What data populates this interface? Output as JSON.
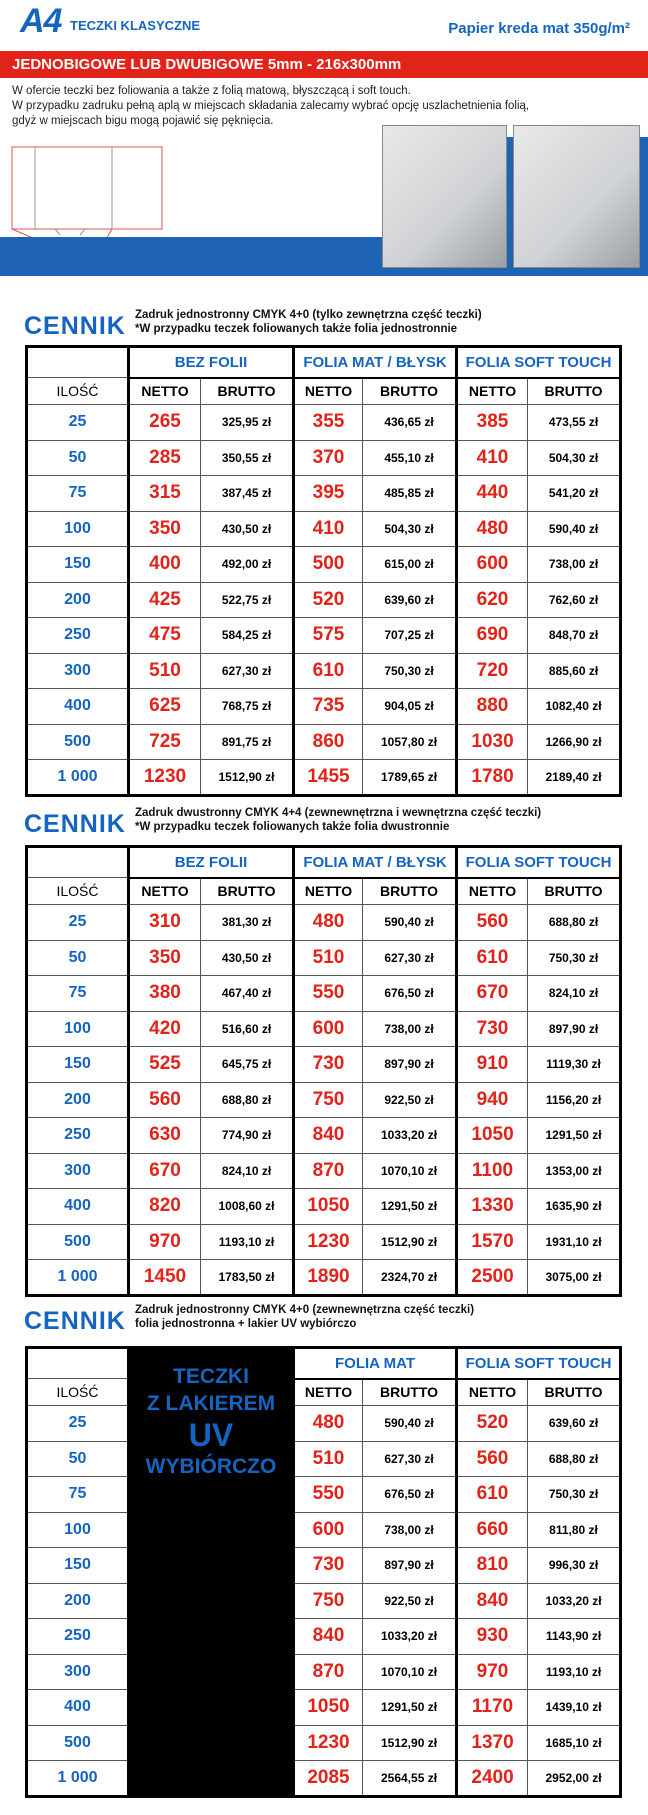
{
  "header": {
    "logo": "A4",
    "title": "TECZKI KLASYCZNE",
    "paper": "Papier kreda mat 350g/m²"
  },
  "banner": "JEDNOBIGOWE LUB DWUBIGOWE 5mm - 216x300mm",
  "intro": [
    "W ofercie teczki bez foliowania a także z folią matową, błyszczącą i soft touch.",
    "W przypadku zadruku pełną aplą w miejscach składania zalecamy wybrać opcję uszlachetnienia folią,",
    "gdyż w miejscach bigu mogą pojawić się pęknięcia."
  ],
  "tables": [
    {
      "label": "CENNIK",
      "desc": [
        "Zadruk jednostronny CMYK 4+0 (tylko zewnętrzna część teczki)",
        "*W przypadku teczek foliowanych także folia jednostronnie"
      ],
      "groups": [
        "BEZ FOLII",
        "FOLIA MAT / BŁYSK",
        "FOLIA SOFT TOUCH"
      ],
      "qty_header": "ILOŚĆ",
      "subheaders": [
        "NETTO",
        "BRUTTO",
        "NETTO",
        "BRUTTO",
        "NETTO",
        "BRUTTO"
      ],
      "rows": [
        [
          "25",
          "265",
          "325,95 zł",
          "355",
          "436,65 zł",
          "385",
          "473,55 zł"
        ],
        [
          "50",
          "285",
          "350,55 zł",
          "370",
          "455,10 zł",
          "410",
          "504,30 zł"
        ],
        [
          "75",
          "315",
          "387,45 zł",
          "395",
          "485,85 zł",
          "440",
          "541,20 zł"
        ],
        [
          "100",
          "350",
          "430,50 zł",
          "410",
          "504,30 zł",
          "480",
          "590,40 zł"
        ],
        [
          "150",
          "400",
          "492,00 zł",
          "500",
          "615,00 zł",
          "600",
          "738,00 zł"
        ],
        [
          "200",
          "425",
          "522,75 zł",
          "520",
          "639,60 zł",
          "620",
          "762,60 zł"
        ],
        [
          "250",
          "475",
          "584,25 zł",
          "575",
          "707,25 zł",
          "690",
          "848,70 zł"
        ],
        [
          "300",
          "510",
          "627,30 zł",
          "610",
          "750,30 zł",
          "720",
          "885,60 zł"
        ],
        [
          "400",
          "625",
          "768,75 zł",
          "735",
          "904,05 zł",
          "880",
          "1082,40 zł"
        ],
        [
          "500",
          "725",
          "891,75 zł",
          "860",
          "1057,80 zł",
          "1030",
          "1266,90 zł"
        ],
        [
          "1 000",
          "1230",
          "1512,90 zł",
          "1455",
          "1789,65 zł",
          "1780",
          "2189,40 zł"
        ]
      ]
    },
    {
      "label": "CENNIK",
      "desc": [
        "Zadruk dwustronny CMYK 4+4 (zewnewnętrzna i wewnętrzna część teczki)",
        "*W przypadku teczek foliowanych także folia dwustronnie"
      ],
      "groups": [
        "BEZ FOLII",
        "FOLIA MAT / BŁYSK",
        "FOLIA SOFT TOUCH"
      ],
      "qty_header": "ILOŚĆ",
      "subheaders": [
        "NETTO",
        "BRUTTO",
        "NETTO",
        "BRUTTO",
        "NETTO",
        "BRUTTO"
      ],
      "rows": [
        [
          "25",
          "310",
          "381,30 zł",
          "480",
          "590,40 zł",
          "560",
          "688,80 zł"
        ],
        [
          "50",
          "350",
          "430,50 zł",
          "510",
          "627,30 zł",
          "610",
          "750,30 zł"
        ],
        [
          "75",
          "380",
          "467,40 zł",
          "550",
          "676,50 zł",
          "670",
          "824,10 zł"
        ],
        [
          "100",
          "420",
          "516,60 zł",
          "600",
          "738,00 zł",
          "730",
          "897,90 zł"
        ],
        [
          "150",
          "525",
          "645,75 zł",
          "730",
          "897,90 zł",
          "910",
          "1119,30 zł"
        ],
        [
          "200",
          "560",
          "688,80 zł",
          "750",
          "922,50 zł",
          "940",
          "1156,20 zł"
        ],
        [
          "250",
          "630",
          "774,90 zł",
          "840",
          "1033,20 zł",
          "1050",
          "1291,50 zł"
        ],
        [
          "300",
          "670",
          "824,10 zł",
          "870",
          "1070,10 zł",
          "1100",
          "1353,00 zł"
        ],
        [
          "400",
          "820",
          "1008,60 zł",
          "1050",
          "1291,50 zł",
          "1330",
          "1635,90 zł"
        ],
        [
          "500",
          "970",
          "1193,10 zł",
          "1230",
          "1512,90 zł",
          "1570",
          "1931,10 zł"
        ],
        [
          "1 000",
          "1450",
          "1783,50 zł",
          "1890",
          "2324,70 zł",
          "2500",
          "3075,00 zł"
        ]
      ]
    },
    {
      "label": "CENNIK",
      "desc": [
        "Zadruk jednostronny CMYK 4+0 (zewnewnętrzna część teczki)",
        "folia jednostronna + lakier UV wybiórczo"
      ],
      "block": [
        "TECZKI",
        "Z LAKIEREM",
        "UV",
        "WYBIÓRCZO"
      ],
      "groups": [
        "FOLIA MAT",
        "FOLIA SOFT TOUCH"
      ],
      "qty_header": "ILOŚĆ",
      "subheaders": [
        "NETTO",
        "BRUTTO",
        "NETTO",
        "BRUTTO"
      ],
      "rows": [
        [
          "25",
          "480",
          "590,40 zł",
          "520",
          "639,60 zł"
        ],
        [
          "50",
          "510",
          "627,30 zł",
          "560",
          "688,80 zł"
        ],
        [
          "75",
          "550",
          "676,50 zł",
          "610",
          "750,30 zł"
        ],
        [
          "100",
          "600",
          "738,00 zł",
          "660",
          "811,80 zł"
        ],
        [
          "150",
          "730",
          "897,90 zł",
          "810",
          "996,30 zł"
        ],
        [
          "200",
          "750",
          "922,50 zł",
          "840",
          "1033,20 zł"
        ],
        [
          "250",
          "840",
          "1033,20 zł",
          "930",
          "1143,90 zł"
        ],
        [
          "300",
          "870",
          "1070,10 zł",
          "970",
          "1193,10 zł"
        ],
        [
          "400",
          "1050",
          "1291,50 zł",
          "1170",
          "1439,10 zł"
        ],
        [
          "500",
          "1230",
          "1512,90 zł",
          "1370",
          "1685,10 zł"
        ],
        [
          "1 000",
          "2085",
          "2564,55 zł",
          "2400",
          "2952,00 zł"
        ]
      ]
    }
  ]
}
